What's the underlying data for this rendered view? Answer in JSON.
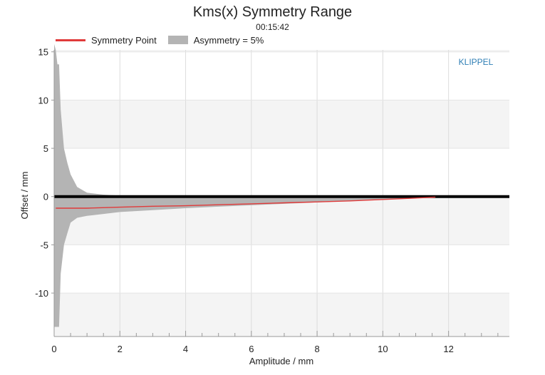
{
  "chart_data": {
    "type": "area",
    "title": "Kms(x) Symmetry Range",
    "subtitle": "00:15:42",
    "xlabel": "Amplitude / mm",
    "ylabel": "Offset / mm",
    "xlim": [
      0,
      13.85
    ],
    "ylim": [
      -14.5,
      15.2
    ],
    "xticks": [
      0,
      2,
      4,
      6,
      8,
      10,
      12
    ],
    "yticks": [
      15,
      10,
      5,
      0,
      -5,
      -10
    ],
    "grid": true,
    "legend_position": "top-left",
    "watermark": "KLIPPEL",
    "colors": {
      "symmetry": "#e03a3a",
      "asymmetry": "#b4b4b4",
      "zero": "#000000",
      "watermark": "#2f7fb5"
    },
    "series": [
      {
        "name": "Symmetry Point",
        "kind": "line",
        "x": [
          0.05,
          1.0,
          2.0,
          3.0,
          4.0,
          5.0,
          6.0,
          7.0,
          8.0,
          9.0,
          10.0,
          11.0,
          11.6
        ],
        "y": [
          -1.2,
          -1.2,
          -1.1,
          -1.0,
          -0.95,
          -0.85,
          -0.75,
          -0.65,
          -0.55,
          -0.45,
          -0.3,
          -0.15,
          -0.05
        ]
      },
      {
        "name": "Asymmetry = 5%",
        "kind": "band",
        "x": [
          0.0,
          0.05,
          0.1,
          0.15,
          0.2,
          0.3,
          0.4,
          0.5,
          0.7,
          1.0,
          1.5,
          2.0,
          3.0,
          4.0,
          5.0,
          6.0,
          7.0,
          8.0,
          9.0,
          10.0,
          11.0,
          12.0,
          13.0,
          13.85
        ],
        "upper": [
          15.8,
          15.2,
          13.7,
          13.7,
          9.0,
          5.0,
          3.5,
          2.3,
          1.0,
          0.4,
          0.2,
          0.1,
          0.05,
          0.03,
          0.02,
          0.02,
          0.02,
          0.02,
          0.02,
          0.02,
          0.05,
          0.05,
          0.1,
          0.1
        ],
        "lower": [
          -13.5,
          -13.5,
          -13.5,
          -13.5,
          -8.0,
          -5.0,
          -3.8,
          -2.7,
          -2.2,
          -2.0,
          -1.8,
          -1.6,
          -1.4,
          -1.2,
          -1.05,
          -0.9,
          -0.75,
          -0.6,
          -0.45,
          -0.3,
          -0.15,
          -0.05,
          0.0,
          0.0
        ]
      }
    ]
  }
}
